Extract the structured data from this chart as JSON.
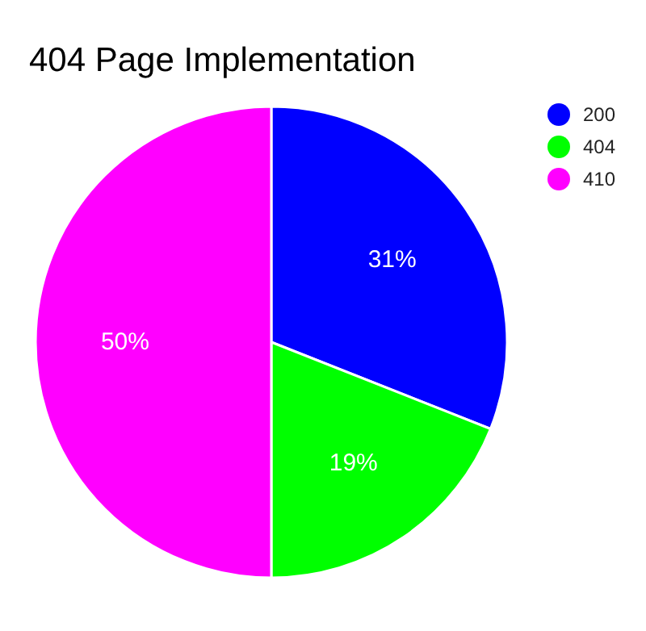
{
  "chart_data": {
    "type": "pie",
    "title": "404 Page Implementation",
    "categories": [
      "200",
      "404",
      "410"
    ],
    "values": [
      31,
      19,
      50
    ],
    "colors": [
      "#0000ff",
      "#00ff00",
      "#ff00ff"
    ],
    "value_labels": [
      "31%",
      "19%",
      "50%"
    ],
    "legend": "top right"
  }
}
